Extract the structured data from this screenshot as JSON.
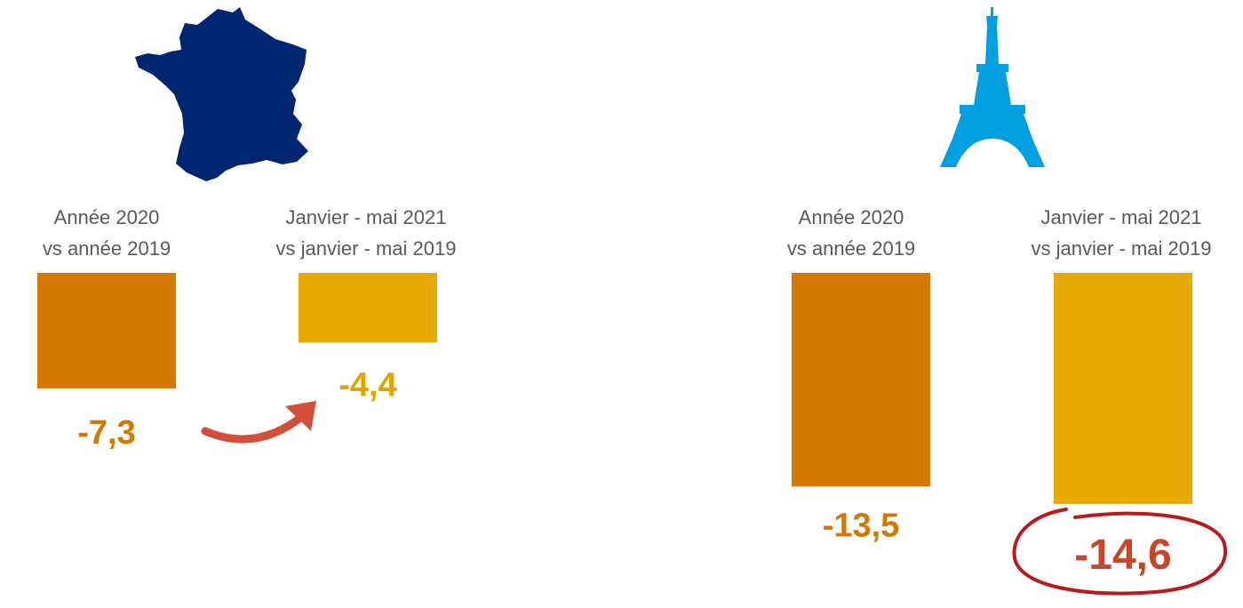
{
  "colors": {
    "bar_2020": "#D47800",
    "bar_2021": "#E8A900",
    "label_2020": "#D47800",
    "label_2021": "#E0A300",
    "highlight_label": "#C8472B",
    "arrow": "#D2503A",
    "circle": "#B71C1C",
    "france_map": "#002672",
    "eiffel_tower": "#009FDF",
    "category_text": "#595959"
  },
  "icons": {
    "left_panel": "france-map-icon",
    "right_panel": "eiffel-tower-icon"
  },
  "chart_data": [
    {
      "type": "bar",
      "panel": "France",
      "categories": [
        [
          "Année 2020",
          "vs année 2019"
        ],
        [
          "Janvier - mai 2021",
          "vs janvier - mai 2019"
        ]
      ],
      "values": [
        -7.3,
        -4.4
      ],
      "value_labels": [
        "-7,3",
        "-4,4"
      ],
      "annotation": "arrow from first to second value"
    },
    {
      "type": "bar",
      "panel": "Paris",
      "categories": [
        [
          "Année 2020",
          "vs année 2019"
        ],
        [
          "Janvier - mai 2021",
          "vs janvier - mai 2019"
        ]
      ],
      "values": [
        -13.5,
        -14.6
      ],
      "value_labels": [
        "-13,5",
        "-14,6"
      ],
      "annotation": "second value circled"
    }
  ]
}
